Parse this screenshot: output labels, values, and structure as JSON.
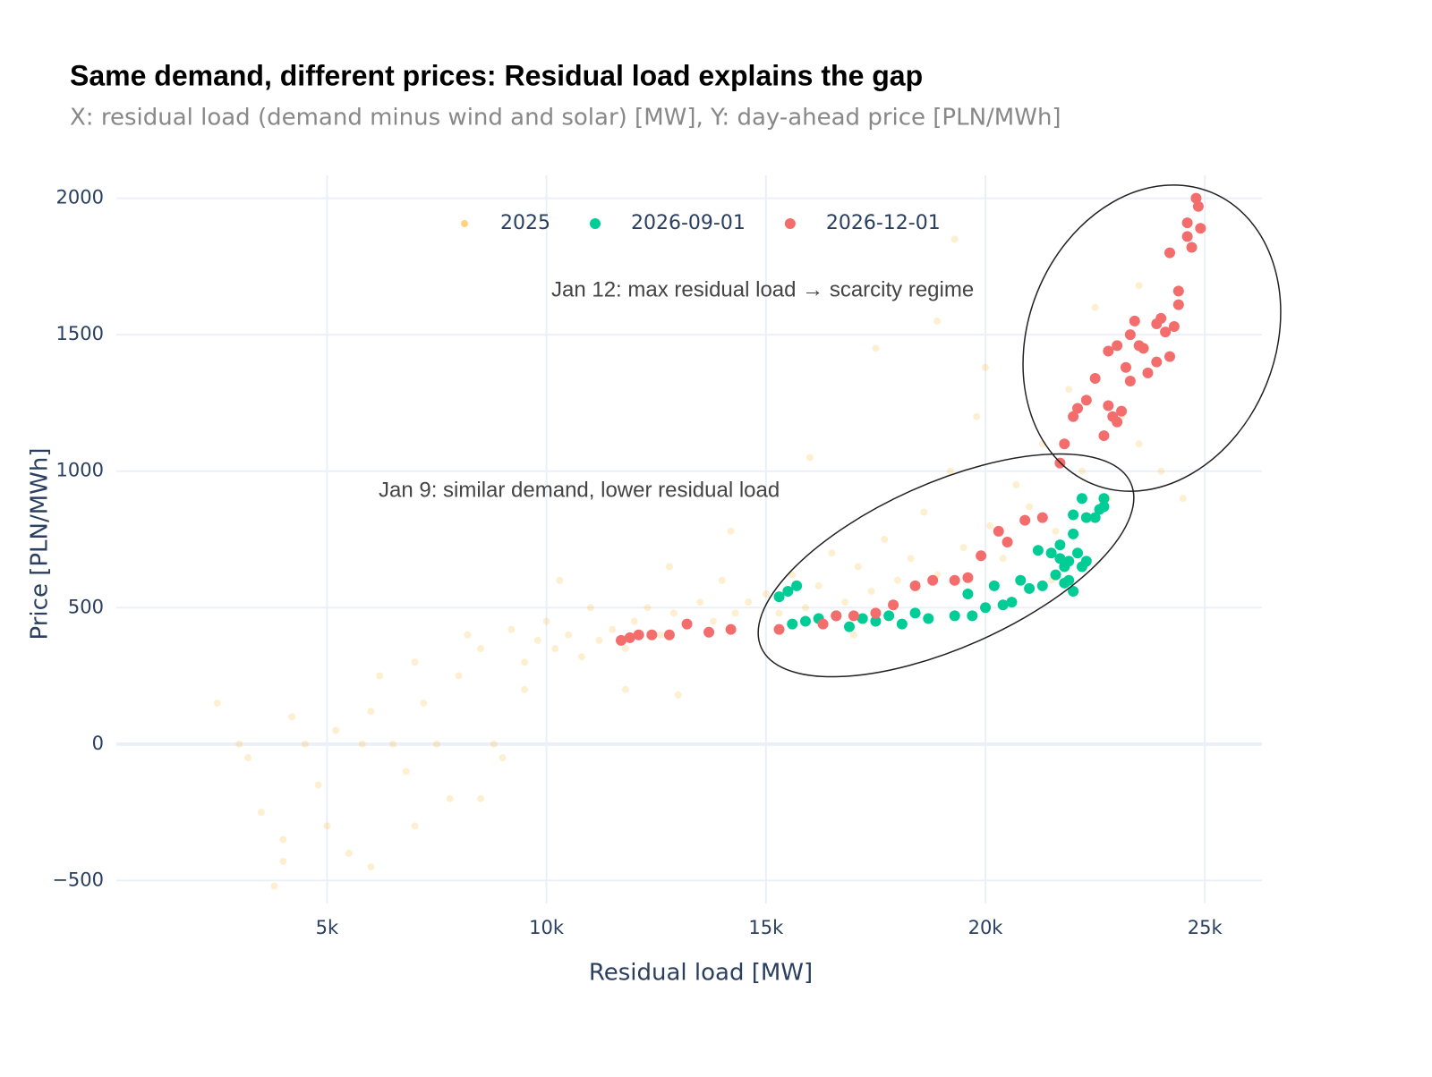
{
  "chart_data": {
    "type": "scatter",
    "title": "Same demand, different prices: Residual load explains the gap",
    "subtitle": "X: residual load (demand minus wind and solar) [MW], Y: day-ahead price [PLN/MWh]",
    "x_label": "Residual load [MW]",
    "y_label": "Price [PLN/MWh]",
    "xlim": [
      200,
      26300
    ],
    "ylim": [
      -584,
      2084
    ],
    "xticks": [
      {
        "value": 5000,
        "label": "5k"
      },
      {
        "value": 10000,
        "label": "10k"
      },
      {
        "value": 15000,
        "label": "15k"
      },
      {
        "value": 20000,
        "label": "20k"
      },
      {
        "value": 25000,
        "label": "25k"
      }
    ],
    "yticks": [
      {
        "value": -500,
        "label": "−500"
      },
      0,
      500,
      1000,
      1500,
      2000
    ],
    "grid": true,
    "legend": "top",
    "annotations": [
      "Jan 12: max residual load → scarcity regime",
      "Jan 9: similar demand, lower residual load"
    ],
    "series": [
      {
        "name": "2025",
        "color": "#FFA500",
        "opacity": 0.18,
        "x": [
          2500,
          3000,
          3200,
          3500,
          3800,
          4000,
          4200,
          4500,
          4800,
          5000,
          5200,
          5500,
          5800,
          6000,
          6200,
          6500,
          6800,
          7000,
          7200,
          7500,
          7800,
          8000,
          8200,
          8500,
          8800,
          9000,
          9200,
          9500,
          9800,
          10000,
          10200,
          10500,
          10800,
          11000,
          11200,
          11500,
          11800,
          12000,
          12300,
          12600,
          12900,
          13200,
          13500,
          13800,
          14000,
          14300,
          14600,
          15000,
          15300,
          15600,
          15900,
          16200,
          16500,
          16800,
          17100,
          17400,
          17700,
          18000,
          18300,
          18600,
          18900,
          19200,
          19500,
          19800,
          20100,
          20400,
          20700,
          21000,
          21300,
          21600,
          21900,
          22200,
          22500,
          22800,
          23100,
          23500,
          24000,
          24500,
          19300,
          18900,
          17500,
          20000,
          16000,
          14200,
          12800,
          10300,
          7000,
          4000,
          6000,
          9500,
          11800,
          13000,
          8500,
          21500,
          17000,
          23500
        ],
        "values": [
          150,
          0,
          -50,
          -250,
          -520,
          -430,
          100,
          0,
          -150,
          -300,
          50,
          -400,
          0,
          120,
          250,
          0,
          -100,
          300,
          150,
          0,
          -200,
          250,
          400,
          350,
          0,
          -50,
          420,
          300,
          380,
          450,
          350,
          400,
          320,
          500,
          380,
          420,
          350,
          450,
          500,
          400,
          480,
          430,
          520,
          450,
          600,
          480,
          520,
          550,
          480,
          620,
          500,
          580,
          700,
          520,
          650,
          560,
          750,
          600,
          680,
          850,
          620,
          1000,
          720,
          1200,
          800,
          680,
          950,
          870,
          1100,
          780,
          1300,
          1000,
          1600,
          900,
          1200,
          1100,
          1000,
          900,
          1850,
          1550,
          1450,
          1380,
          1050,
          780,
          650,
          600,
          -300,
          -350,
          -450,
          200,
          200,
          180,
          -200,
          600,
          400,
          1680
        ]
      },
      {
        "name": "2026-09-01",
        "color": "#00CC96",
        "opacity": 1,
        "x": [
          15300,
          15500,
          15700,
          15600,
          15900,
          16200,
          16600,
          16900,
          17200,
          17500,
          17800,
          18100,
          18400,
          18700,
          19300,
          19600,
          19700,
          20000,
          20200,
          20400,
          20600,
          20800,
          21000,
          21300,
          21500,
          21600,
          21700,
          21800,
          21900,
          22000,
          22100,
          22200,
          21700,
          21900,
          22000,
          22300,
          21800,
          22200,
          22300,
          22500,
          22600,
          22700,
          22700,
          21200,
          22000
        ],
        "values": [
          540,
          560,
          580,
          440,
          450,
          460,
          470,
          430,
          460,
          450,
          470,
          440,
          480,
          460,
          470,
          550,
          470,
          500,
          580,
          510,
          520,
          600,
          570,
          580,
          700,
          620,
          680,
          650,
          600,
          560,
          700,
          650,
          730,
          670,
          770,
          670,
          590,
          900,
          830,
          830,
          860,
          900,
          870,
          710,
          840
        ]
      },
      {
        "name": "2026-12-01",
        "color": "#F46D6D",
        "opacity": 1,
        "x": [
          11700,
          11900,
          12100,
          12400,
          12800,
          13200,
          13700,
          14200,
          15300,
          16300,
          16600,
          17000,
          17500,
          17900,
          18400,
          18800,
          19300,
          19600,
          19900,
          20300,
          20500,
          20900,
          21300,
          21700,
          21800,
          22000,
          22100,
          22300,
          22500,
          22700,
          22800,
          22900,
          23000,
          23100,
          22800,
          23000,
          23200,
          23300,
          23400,
          23500,
          23600,
          23700,
          23900,
          24000,
          24100,
          24200,
          24300,
          24400,
          24400,
          24200,
          24600,
          24600,
          24700,
          24800,
          24900,
          24850,
          23300,
          23900
        ],
        "values": [
          380,
          390,
          400,
          400,
          400,
          440,
          410,
          420,
          420,
          440,
          470,
          470,
          480,
          510,
          580,
          600,
          600,
          610,
          690,
          780,
          740,
          820,
          830,
          1030,
          1100,
          1200,
          1230,
          1260,
          1340,
          1130,
          1240,
          1200,
          1180,
          1220,
          1440,
          1460,
          1380,
          1500,
          1550,
          1460,
          1450,
          1360,
          1540,
          1560,
          1510,
          1420,
          1530,
          1660,
          1610,
          1800,
          1860,
          1910,
          1820,
          2000,
          1890,
          1970,
          1330,
          1400
        ]
      }
    ]
  }
}
